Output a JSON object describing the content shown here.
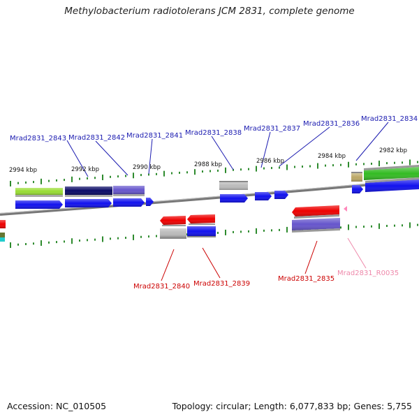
{
  "title": "Methylobacterium radiotolerans JCM 2831, complete genome",
  "footer": {
    "accession": "Accession: NC_010505",
    "summary": "Topology: circular; Length: 6,077,833 bp; Genes: 5,755"
  },
  "colors": {
    "backbone": "#8c8c8c",
    "tick": "#2e8b2e",
    "forward_label": "#1a1ab0",
    "reverse_label": "#cc0000",
    "rna_label": "#ee88aa"
  },
  "kbp_labels": [
    "2994 kbp",
    "2992 kbp",
    "2990 kbp",
    "2988 kbp",
    "2986 kbp",
    "2984 kbp",
    "2982 kbp"
  ],
  "top_labels": [
    "Mrad2831_2843",
    "Mrad2831_2842",
    "Mrad2831_2841",
    "Mrad2831_2838",
    "Mrad2831_2837",
    "Mrad2831_2836",
    "Mrad2831_2834"
  ],
  "bottom_labels": [
    "Mrad2831_2840",
    "Mrad2831_2839",
    "Mrad2831_2835",
    "Mrad2831_R0035"
  ]
}
